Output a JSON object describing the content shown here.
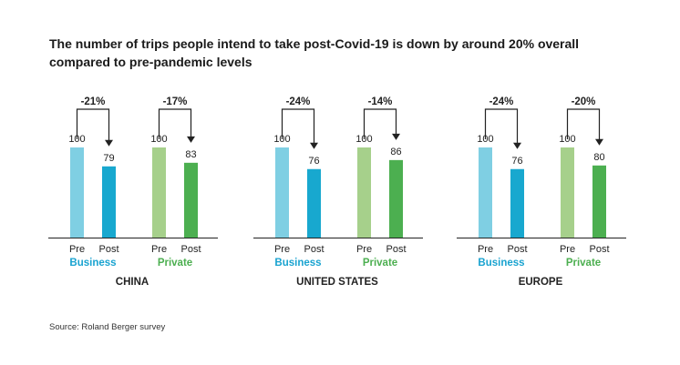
{
  "title_lines": [
    "The number of trips people intend to take post-Covid-19 is down by around 20% overall",
    "compared to pre-pandemic levels"
  ],
  "source": "Source: Roland Berger survey",
  "colors": {
    "business_pre": "#7fcfe3",
    "business_post": "#18a8cf",
    "private_pre": "#a6d08b",
    "private_post": "#4caf50",
    "business_label": "#19a3d0",
    "private_label": "#4caf50",
    "axis": "#222222",
    "text": "#222222"
  },
  "chart_data": [
    {
      "type": "bar",
      "title": "CHINA",
      "groups": [
        {
          "name": "Business",
          "categories": [
            "Pre",
            "Post"
          ],
          "values": [
            100,
            79
          ],
          "change_label": "-21%"
        },
        {
          "name": "Private",
          "categories": [
            "Pre",
            "Post"
          ],
          "values": [
            100,
            83
          ],
          "change_label": "-17%"
        }
      ],
      "ylim": [
        0,
        100
      ]
    },
    {
      "type": "bar",
      "title": "UNITED STATES",
      "groups": [
        {
          "name": "Business",
          "categories": [
            "Pre",
            "Post"
          ],
          "values": [
            100,
            76
          ],
          "change_label": "-24%"
        },
        {
          "name": "Private",
          "categories": [
            "Pre",
            "Post"
          ],
          "values": [
            100,
            86
          ],
          "change_label": "-14%"
        }
      ],
      "ylim": [
        0,
        100
      ]
    },
    {
      "type": "bar",
      "title": "EUROPE",
      "groups": [
        {
          "name": "Business",
          "categories": [
            "Pre",
            "Post"
          ],
          "values": [
            100,
            76
          ],
          "change_label": "-24%"
        },
        {
          "name": "Private",
          "categories": [
            "Pre",
            "Post"
          ],
          "values": [
            100,
            80
          ],
          "change_label": "-20%"
        }
      ],
      "ylim": [
        0,
        100
      ]
    }
  ]
}
